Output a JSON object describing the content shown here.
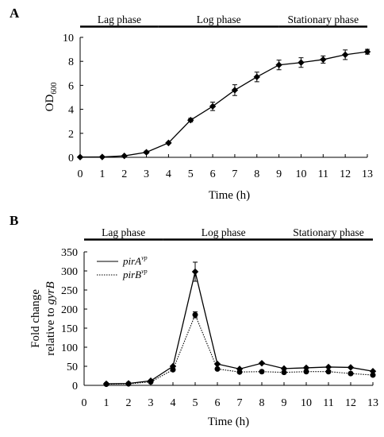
{
  "panels": {
    "A": {
      "letter": "A"
    },
    "B": {
      "letter": "B"
    }
  },
  "chart_data": [
    {
      "panel": "A",
      "type": "line",
      "xlabel": "Time (h)",
      "ylabel": "OD",
      "ylabel_subscript": "600",
      "xlim": [
        0,
        13
      ],
      "ylim": [
        0,
        10
      ],
      "xticks": [
        0,
        1,
        2,
        3,
        4,
        5,
        6,
        7,
        8,
        9,
        10,
        11,
        12,
        13
      ],
      "yticks": [
        0,
        2,
        4,
        6,
        8,
        10
      ],
      "grid": false,
      "phases": [
        {
          "label": "Lag phase",
          "start": 0,
          "end": 3.55
        },
        {
          "label": "Log phase",
          "start": 3.55,
          "end": 9
        },
        {
          "label": "Stationary phase",
          "start": 9,
          "end": 13
        }
      ],
      "series": [
        {
          "marker": "diamond",
          "line": "solid",
          "color": "#000000",
          "x": [
            0,
            1,
            2,
            3,
            4,
            5,
            6,
            7,
            8,
            9,
            10,
            11,
            12,
            13
          ],
          "y": [
            0.02,
            0.03,
            0.12,
            0.42,
            1.2,
            3.1,
            4.25,
            5.6,
            6.7,
            7.7,
            7.9,
            8.15,
            8.55,
            8.8
          ],
          "err": [
            0,
            0,
            0,
            0.1,
            0,
            0.15,
            0.35,
            0.45,
            0.4,
            0.4,
            0.4,
            0.3,
            0.4,
            0.2
          ]
        }
      ]
    },
    {
      "panel": "B",
      "type": "line",
      "xlabel": "Time (h)",
      "ylabel_line1": "Fold change",
      "ylabel_line2_prefix": "relative to ",
      "ylabel_line2_gene": "gyrB",
      "xlim": [
        0,
        13
      ],
      "ylim": [
        0,
        350
      ],
      "xticks": [
        0,
        1,
        2,
        3,
        4,
        5,
        6,
        7,
        8,
        9,
        10,
        11,
        12,
        13
      ],
      "yticks": [
        0,
        50,
        100,
        150,
        200,
        250,
        300,
        350
      ],
      "grid": false,
      "legend_position": "top-left",
      "phases": [
        {
          "label": "Lag phase",
          "start": 0,
          "end": 3.55
        },
        {
          "label": "Log phase",
          "start": 3.55,
          "end": 9
        },
        {
          "label": "Stationary phase",
          "start": 9,
          "end": 13
        }
      ],
      "series": [
        {
          "name": "pirA",
          "name_superscript": "vp",
          "marker": "diamond",
          "line": "solid",
          "color": "#000000",
          "x": [
            1,
            2,
            3,
            4,
            5,
            6,
            7,
            8,
            9,
            10,
            11,
            12,
            13
          ],
          "y": [
            4,
            5,
            12,
            50,
            298,
            56,
            43,
            58,
            44,
            46,
            48,
            47,
            37
          ],
          "err": [
            0,
            0,
            0,
            0,
            25,
            0,
            0,
            0,
            0,
            0,
            0,
            0,
            0
          ]
        },
        {
          "name": "pirB",
          "name_superscript": "vp",
          "marker": "circle",
          "line": "dotted",
          "color": "#000000",
          "x": [
            1,
            2,
            3,
            4,
            5,
            6,
            7,
            8,
            9,
            10,
            11,
            12,
            13
          ],
          "y": [
            3,
            4,
            9,
            41,
            185,
            43,
            35,
            36,
            34,
            36,
            36,
            31,
            27
          ],
          "err": [
            0,
            0,
            0,
            0,
            8,
            0,
            0,
            0,
            0,
            0,
            0,
            0,
            0
          ]
        }
      ]
    }
  ]
}
